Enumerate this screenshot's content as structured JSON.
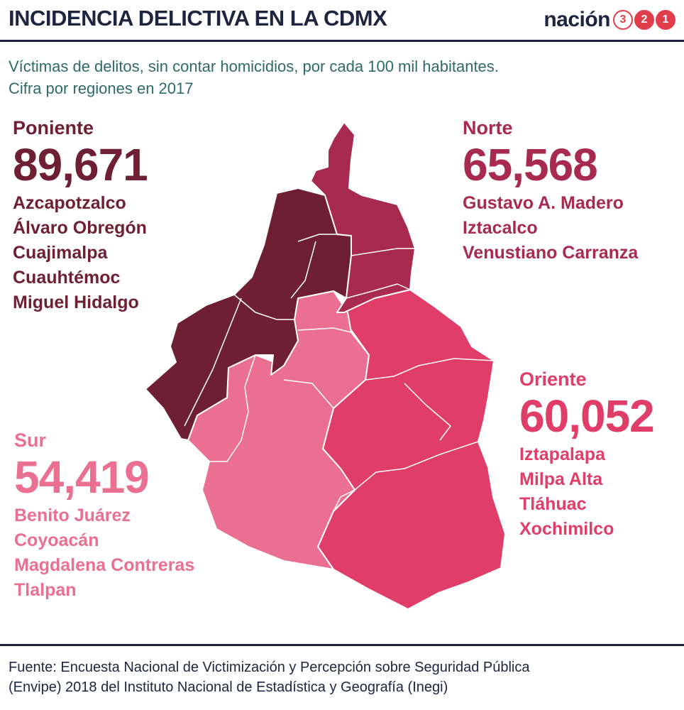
{
  "header": {
    "title": "INCIDENCIA DELICTIVA EN LA CDMX",
    "logo_word": "nación",
    "logo_digits": [
      "3",
      "2",
      "1"
    ]
  },
  "subtitle": {
    "line1": "Víctimas de delitos, sin contar homicidios, por cada 100 mil habitantes.",
    "line2": "Cifra por regiones en 2017"
  },
  "colors": {
    "poniente": "#6e1f34",
    "norte": "#a82b4f",
    "oriente": "#e03d69",
    "sur": "#ea6f91",
    "navy": "#1e2540",
    "accent": "#e23d4b"
  },
  "regions": {
    "poniente": {
      "name": "Poniente",
      "value": "89,671",
      "alcaldias": [
        "Azcapotzalco",
        "Álvaro Obregón",
        "Cuajimalpa",
        "Cuauhtémoc",
        "Miguel Hidalgo"
      ]
    },
    "norte": {
      "name": "Norte",
      "value": "65,568",
      "alcaldias": [
        "Gustavo A. Madero",
        "Iztacalco",
        "Venustiano Carranza"
      ]
    },
    "oriente": {
      "name": "Oriente",
      "value": "60,052",
      "alcaldias": [
        "Iztapalapa",
        "Milpa Alta",
        "Tláhuac",
        "Xochimilco"
      ]
    },
    "sur": {
      "name": "Sur",
      "value": "54,419",
      "alcaldias": [
        "Benito Juárez",
        "Coyoacán",
        "Magdalena Contreras",
        "Tlalpan"
      ]
    }
  },
  "source": {
    "line1": "Fuente: Encuesta Nacional de Victimización y Percepción sobre Seguridad Pública",
    "line2": "(Envipe) 2018 del Instituto Nacional de Estadística y Geografía (Inegi)"
  }
}
